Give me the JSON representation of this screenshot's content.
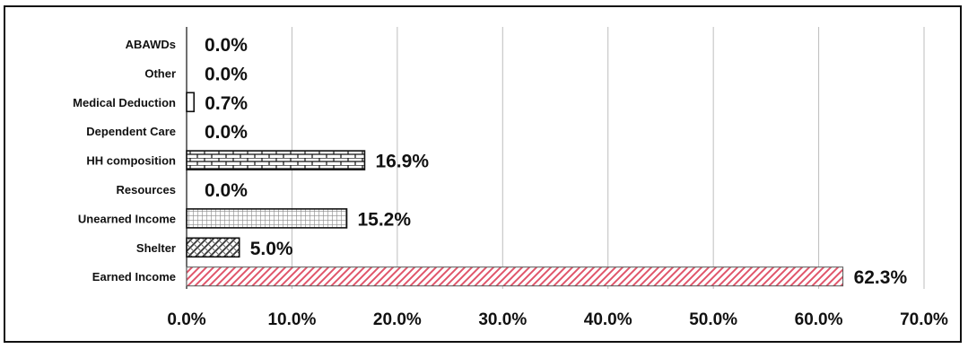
{
  "chart_data": {
    "type": "bar",
    "orientation": "horizontal",
    "categories": [
      "ABAWDs",
      "Other",
      "Medical Deduction",
      "Dependent Care",
      "HH composition",
      "Resources",
      "Unearned Income",
      "Shelter",
      "Earned Income"
    ],
    "values": [
      0.0,
      0.0,
      0.7,
      0.0,
      16.9,
      0.0,
      15.2,
      5.0,
      62.3
    ],
    "data_labels": [
      "0.0%",
      "0.0%",
      "0.7%",
      "0.0%",
      "16.9%",
      "0.0%",
      "15.2%",
      "5.0%",
      "62.3%"
    ],
    "patterns": [
      "none",
      "none",
      "plain-white",
      "none",
      "brick",
      "none",
      "grid",
      "weave",
      "red-diagonal"
    ],
    "xlim": [
      0,
      70
    ],
    "xticks": [
      "0.0%",
      "10.0%",
      "20.0%",
      "30.0%",
      "40.0%",
      "50.0%",
      "60.0%",
      "70.0%"
    ],
    "title": "",
    "xlabel": "",
    "ylabel": "",
    "grid": "vertical",
    "legend": "none",
    "colors": {
      "earned_income": "#e0556a",
      "bar_outline": "#111111",
      "grid": "#bdbdbd"
    }
  }
}
